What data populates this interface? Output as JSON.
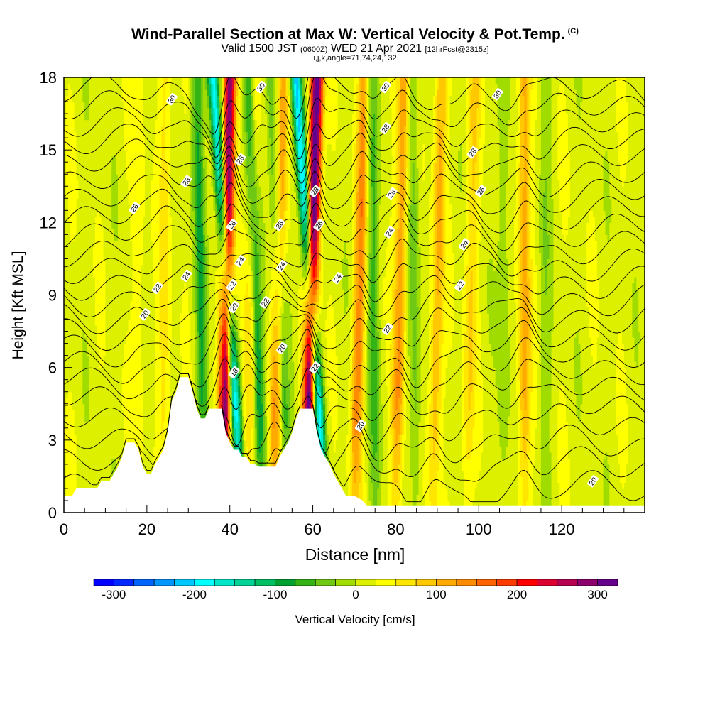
{
  "chart_data": {
    "type": "heatmap",
    "title": "Wind-Parallel Section at Max W: Vertical Velocity & Pot.Temp.",
    "copyright_mark": "(C)",
    "subtitle": {
      "valid_prefix": "Valid 1500 JST",
      "utc": "(0600Z)",
      "date": "WED 21 Apr 2021",
      "forecast": "[12hrFcst@2315z]"
    },
    "params_line": "i,j,k,angle=71,74,24,132",
    "xlabel": "Distance [nm]",
    "ylabel": "Height [Kft MSL]",
    "xlim": [
      0,
      140
    ],
    "ylim": [
      0,
      18
    ],
    "x_ticks": [
      "0",
      "20",
      "40",
      "60",
      "80",
      "100",
      "120"
    ],
    "x_tick_values": [
      0,
      20,
      40,
      60,
      80,
      100,
      120
    ],
    "y_ticks": [
      "0",
      "3",
      "6",
      "9",
      "12",
      "15",
      "18"
    ],
    "y_tick_values": [
      0,
      3,
      6,
      9,
      12,
      15,
      18
    ],
    "colorbar": {
      "label": "Vertical Velocity [cm/s]",
      "range": [
        -325,
        325
      ],
      "step": 25,
      "ticks": [
        "-300",
        "-200",
        "-100",
        "0",
        "100",
        "200",
        "300"
      ],
      "tick_values": [
        -300,
        -200,
        -100,
        0,
        100,
        200,
        300
      ],
      "colors": [
        "#0000ff",
        "#0028ff",
        "#0064ff",
        "#0096ff",
        "#00c8ff",
        "#00ffff",
        "#00e6c8",
        "#00d296",
        "#00be64",
        "#00a032",
        "#34b414",
        "#6ec814",
        "#a0dc00",
        "#dcf000",
        "#ffff00",
        "#ffe600",
        "#ffc800",
        "#ffaa00",
        "#ff8c00",
        "#ff6400",
        "#ff3c00",
        "#ff0000",
        "#dc0032",
        "#b40050",
        "#8c006e",
        "#64008c"
      ]
    },
    "updraft_bands": [
      {
        "x_base": 38.5,
        "x_top": 40.0,
        "w": 300
      },
      {
        "x_base": 58.5,
        "x_top": 61.0,
        "w": 330
      },
      {
        "x_base": 50.5,
        "x_top": 53.0,
        "w": 110
      },
      {
        "x_base": 70.0,
        "x_top": 72.5,
        "w": 120
      },
      {
        "x_base": 80.0,
        "x_top": 82.0,
        "w": 110
      },
      {
        "x_base": 89.0,
        "x_top": 91.0,
        "w": 90
      },
      {
        "x_base": 97.0,
        "x_top": 99.0,
        "w": 60
      },
      {
        "x_base": 111.0,
        "x_top": 111.0,
        "w": 100
      },
      {
        "x_base": 18.0,
        "x_top": 18.0,
        "w": 30
      },
      {
        "x_base": 24.0,
        "x_top": 24.5,
        "w": 45
      },
      {
        "x_base": 44.5,
        "x_top": 46.0,
        "w": 60
      }
    ],
    "downdraft_bands": [
      {
        "x_base": 43.0,
        "x_top": 36.0,
        "w": -210
      },
      {
        "x_base": 63.0,
        "x_top": 56.0,
        "w": -220
      },
      {
        "x_base": 34.0,
        "x_top": 32.0,
        "w": -90
      },
      {
        "x_base": 48.0,
        "x_top": 44.5,
        "w": -110
      },
      {
        "x_base": 54.0,
        "x_top": 50.0,
        "w": -80
      },
      {
        "x_base": 75.0,
        "x_top": 74.0,
        "w": -70
      },
      {
        "x_base": 85.0,
        "x_top": 84.0,
        "w": -55
      },
      {
        "x_base": 106.0,
        "x_top": 106.0,
        "w": -40
      },
      {
        "x_base": 116.0,
        "x_top": 116.0,
        "w": -30
      }
    ],
    "terrain_kft": [
      [
        0,
        0.7
      ],
      [
        2,
        0.7
      ],
      [
        3,
        1.0
      ],
      [
        8,
        1.0
      ],
      [
        9,
        1.3
      ],
      [
        11,
        1.3
      ],
      [
        12,
        1.6
      ],
      [
        13,
        1.9
      ],
      [
        14,
        2.3
      ],
      [
        15,
        2.9
      ],
      [
        17,
        2.9
      ],
      [
        18,
        2.6
      ],
      [
        19,
        1.9
      ],
      [
        20,
        1.6
      ],
      [
        21,
        1.6
      ],
      [
        22,
        2.0
      ],
      [
        23,
        2.3
      ],
      [
        24,
        2.6
      ],
      [
        25,
        3.3
      ],
      [
        26,
        4.6
      ],
      [
        27,
        5.0
      ],
      [
        28,
        5.6
      ],
      [
        30,
        5.6
      ],
      [
        31,
        5.0
      ],
      [
        32,
        4.3
      ],
      [
        33,
        3.9
      ],
      [
        34,
        3.9
      ],
      [
        35,
        4.3
      ],
      [
        38,
        4.3
      ],
      [
        39,
        3.3
      ],
      [
        40,
        2.9
      ],
      [
        41,
        2.6
      ],
      [
        42,
        2.6
      ],
      [
        43,
        2.3
      ],
      [
        44,
        2.3
      ],
      [
        45,
        2.0
      ],
      [
        46,
        2.0
      ],
      [
        47,
        1.9
      ],
      [
        48,
        1.9
      ],
      [
        51,
        1.9
      ],
      [
        52,
        2.3
      ],
      [
        53,
        2.6
      ],
      [
        54,
        2.9
      ],
      [
        55,
        3.3
      ],
      [
        56,
        3.9
      ],
      [
        57,
        4.3
      ],
      [
        60,
        4.3
      ],
      [
        61,
        3.3
      ],
      [
        62,
        2.6
      ],
      [
        63,
        2.3
      ],
      [
        64,
        2.0
      ],
      [
        65,
        1.6
      ],
      [
        66,
        1.3
      ],
      [
        67,
        1.0
      ],
      [
        68,
        0.7
      ],
      [
        70,
        0.7
      ],
      [
        72,
        0.5
      ],
      [
        73,
        0.3
      ],
      [
        140,
        0.3
      ]
    ],
    "theta_contours": [
      {
        "base_kft": 0.9,
        "level": 20
      },
      {
        "base_kft": 1.9,
        "level": 20
      },
      {
        "base_kft": 2.8,
        "level": 20
      },
      {
        "base_kft": 3.7,
        "level": 20
      },
      {
        "base_kft": 4.6,
        "level": 20
      },
      {
        "base_kft": 5.4,
        "level": 20
      },
      {
        "base_kft": 6.1,
        "level": 20
      },
      {
        "base_kft": 6.8,
        "level": 20
      },
      {
        "base_kft": 7.5,
        "level": 22
      },
      {
        "base_kft": 8.2,
        "level": 22
      },
      {
        "base_kft": 8.9,
        "level": 22
      },
      {
        "base_kft": 9.6,
        "level": 24
      },
      {
        "base_kft": 10.3,
        "level": 24
      },
      {
        "base_kft": 11.0,
        "level": 24
      },
      {
        "base_kft": 11.7,
        "level": 24
      },
      {
        "base_kft": 12.4,
        "level": 26
      },
      {
        "base_kft": 13.1,
        "level": 26
      },
      {
        "base_kft": 13.8,
        "level": 26
      },
      {
        "base_kft": 14.5,
        "level": 28
      },
      {
        "base_kft": 15.2,
        "level": 28
      },
      {
        "base_kft": 15.9,
        "level": 28
      },
      {
        "base_kft": 16.6,
        "level": 30
      },
      {
        "base_kft": 17.3,
        "level": 30
      }
    ],
    "contour_labels": [
      {
        "x": 26.0,
        "y": 17.1,
        "text": "30"
      },
      {
        "x": 47.5,
        "y": 17.6,
        "text": "30"
      },
      {
        "x": 77.5,
        "y": 17.6,
        "text": "30"
      },
      {
        "x": 104.5,
        "y": 17.3,
        "text": "30"
      },
      {
        "x": 77.5,
        "y": 15.9,
        "text": "28"
      },
      {
        "x": 98.5,
        "y": 14.9,
        "text": "28"
      },
      {
        "x": 29.5,
        "y": 13.7,
        "text": "28"
      },
      {
        "x": 42.5,
        "y": 14.6,
        "text": "28"
      },
      {
        "x": 60.5,
        "y": 13.3,
        "text": "28"
      },
      {
        "x": 79.0,
        "y": 13.2,
        "text": "28"
      },
      {
        "x": 17.0,
        "y": 12.6,
        "text": "26"
      },
      {
        "x": 100.5,
        "y": 13.3,
        "text": "26"
      },
      {
        "x": 40.5,
        "y": 11.9,
        "text": "26"
      },
      {
        "x": 52.0,
        "y": 11.9,
        "text": "26"
      },
      {
        "x": 61.5,
        "y": 11.9,
        "text": "26"
      },
      {
        "x": 78.5,
        "y": 11.6,
        "text": "24"
      },
      {
        "x": 96.5,
        "y": 11.1,
        "text": "24"
      },
      {
        "x": 29.5,
        "y": 9.8,
        "text": "24"
      },
      {
        "x": 42.5,
        "y": 10.4,
        "text": "24"
      },
      {
        "x": 52.5,
        "y": 10.2,
        "text": "24"
      },
      {
        "x": 66.0,
        "y": 9.7,
        "text": "24"
      },
      {
        "x": 22.5,
        "y": 9.3,
        "text": "22"
      },
      {
        "x": 40.5,
        "y": 9.4,
        "text": "22"
      },
      {
        "x": 48.5,
        "y": 8.7,
        "text": "22"
      },
      {
        "x": 95.5,
        "y": 9.4,
        "text": "22"
      },
      {
        "x": 78.0,
        "y": 7.6,
        "text": "22"
      },
      {
        "x": 19.5,
        "y": 8.2,
        "text": "20"
      },
      {
        "x": 41.0,
        "y": 8.5,
        "text": "20"
      },
      {
        "x": 52.5,
        "y": 6.8,
        "text": "20"
      },
      {
        "x": 60.5,
        "y": 6.0,
        "text": "22"
      },
      {
        "x": 41.0,
        "y": 5.8,
        "text": "18"
      },
      {
        "x": 71.5,
        "y": 3.6,
        "text": "20"
      },
      {
        "x": 127.5,
        "y": 1.3,
        "text": "20"
      }
    ]
  }
}
